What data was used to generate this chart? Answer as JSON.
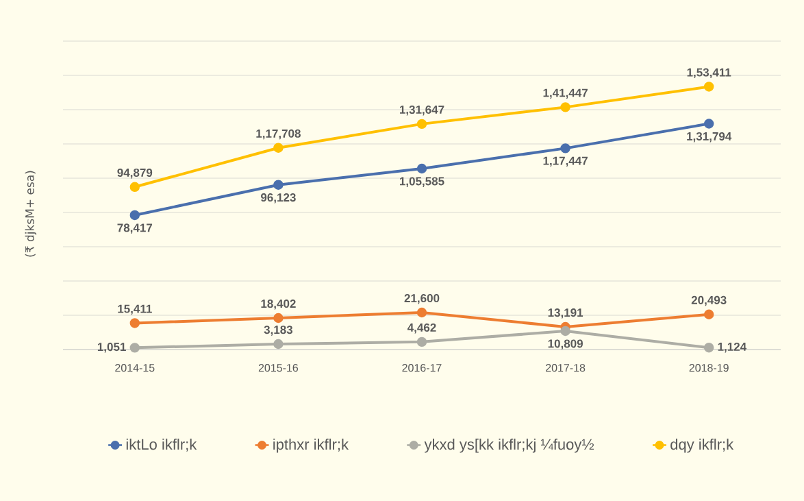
{
  "chart_data": {
    "type": "line",
    "ylabel": "(₹ djksM+ esa)",
    "categories": [
      "2014-15",
      "2015-16",
      "2016-17",
      "2017-18",
      "2018-19"
    ],
    "series": [
      {
        "name": "iktLo ikflr;k",
        "color": "#4a6fad",
        "values": [
          78417,
          96123,
          105585,
          117447,
          131794
        ],
        "value_labels": [
          "78,417",
          "96,123",
          "1,05,585",
          "1,17,447",
          "1,31,794"
        ]
      },
      {
        "name": "ipthxr ikflr;k",
        "color": "#ed7d31",
        "values": [
          15411,
          18402,
          21600,
          13191,
          20493
        ],
        "value_labels": [
          "15,411",
          "18,402",
          "21,600",
          "13,191",
          "20,493"
        ]
      },
      {
        "name": "ykxd ys[kk ikflr;kj ¼fuoy½",
        "color": "#adada5",
        "values": [
          1051,
          3183,
          4462,
          10809,
          1124
        ],
        "value_labels": [
          "1,051",
          "3,183",
          "4,462",
          "10,809",
          "1,124"
        ]
      },
      {
        "name": "dqy ikflr;k",
        "color": "#ffc000",
        "values": [
          94879,
          117708,
          131647,
          141447,
          153411
        ],
        "value_labels": [
          "94,879",
          "1,17,708",
          "1,31,647",
          "1,41,447",
          "1,53,411"
        ]
      }
    ],
    "ylim": [
      0,
      180000
    ],
    "yticks": [
      {
        "value": 0,
        "label": null
      },
      {
        "value": 20000,
        "label": null
      },
      {
        "value": 40000,
        "label": null
      },
      {
        "value": 60000,
        "label": null
      },
      {
        "value": 80000,
        "label": null
      },
      {
        "value": 100000,
        "label": null
      },
      {
        "value": 120000,
        "label": null
      },
      {
        "value": 140000,
        "label": null
      },
      {
        "value": 160000,
        "label": null
      },
      {
        "value": 180000,
        "label": null
      }
    ],
    "grid": "y",
    "legend": "bottom",
    "marker": "circle",
    "line_style": "solid",
    "tick_labels": "x"
  }
}
